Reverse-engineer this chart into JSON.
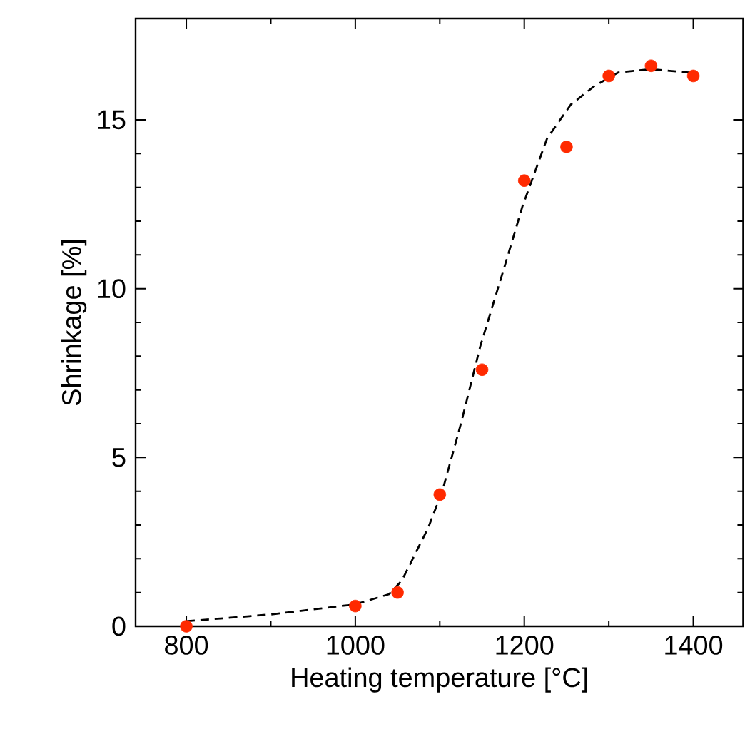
{
  "chart_data": {
    "type": "scatter",
    "xlabel": "Heating temperature [°C]",
    "ylabel": "Shrinkage [%]",
    "xlim": [
      740,
      1459
    ],
    "ylim": [
      0,
      18
    ],
    "xticks": [
      800,
      1000,
      1200,
      1400
    ],
    "yticks": [
      0,
      5,
      10,
      15
    ],
    "series": [
      {
        "color": "#ff2a00",
        "marker": "circle",
        "x": [
          800,
          1000,
          1050,
          1100,
          1150,
          1200,
          1250,
          1300,
          1350,
          1400
        ],
        "values": [
          0,
          0.6,
          1.0,
          3.9,
          7.6,
          13.2,
          14.2,
          16.3,
          16.6,
          16.3
        ]
      },
      {
        "type": "line",
        "color": "#000000",
        "line_style": "dashed",
        "marker": "none",
        "x": [
          800,
          900,
          1000,
          1040,
          1055,
          1086,
          1103,
          1125,
          1148,
          1176,
          1198,
          1227,
          1255,
          1283,
          1311,
          1350,
          1395
        ],
        "values": [
          0.15,
          0.35,
          0.65,
          0.95,
          1.35,
          2.9,
          4.0,
          6.0,
          8.3,
          10.6,
          12.45,
          14.45,
          15.45,
          16.0,
          16.4,
          16.5,
          16.4
        ]
      }
    ]
  }
}
